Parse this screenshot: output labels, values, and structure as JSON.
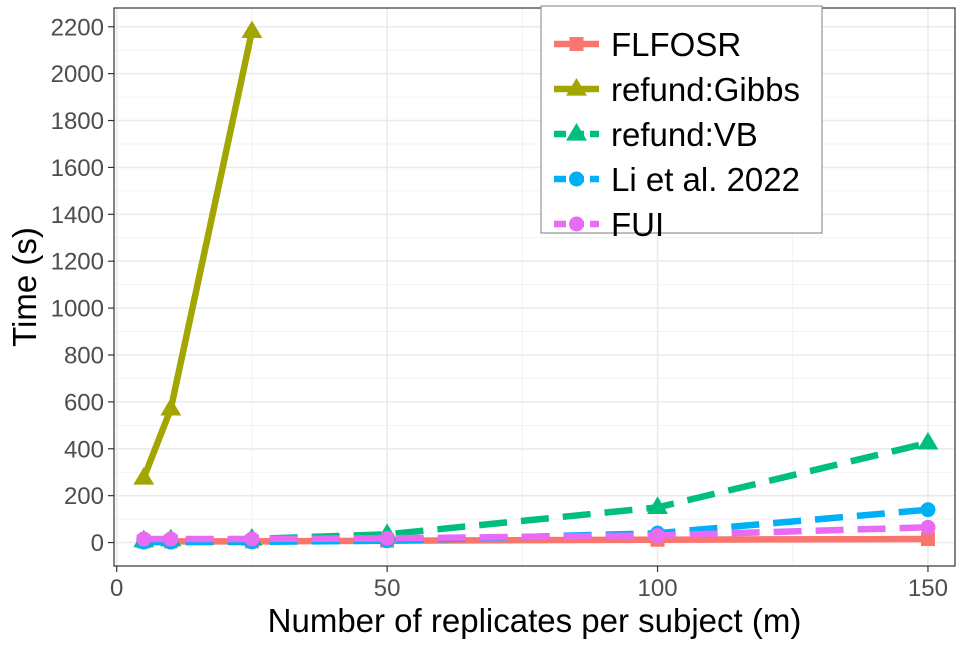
{
  "chart_data": {
    "type": "line",
    "xlabel": "Number of replicates per subject (m)",
    "ylabel": "Time (s)",
    "xlim": [
      -0.5,
      155
    ],
    "ylim": [
      -100,
      2280
    ],
    "xticks": [
      0,
      50,
      100,
      150
    ],
    "yticks": [
      0,
      200,
      400,
      600,
      800,
      1000,
      1200,
      1400,
      1600,
      1800,
      2000,
      2200
    ],
    "grid": true,
    "legend_position": "top-right",
    "series": [
      {
        "name": "FLFOSR",
        "color": "#F8766D",
        "marker": "square",
        "dash": "solid",
        "x": [
          5,
          10,
          25,
          50,
          100,
          150
        ],
        "y": [
          5,
          5,
          5,
          8,
          12,
          15
        ]
      },
      {
        "name": "refund:Gibbs",
        "color": "#A3A500",
        "marker": "triangle",
        "dash": "solid",
        "x": [
          5,
          10,
          25
        ],
        "y": [
          275,
          570,
          2180
        ]
      },
      {
        "name": "refund:VB",
        "color": "#00BF7D",
        "marker": "triangle",
        "dash": "dashed",
        "x": [
          5,
          10,
          25,
          50,
          100,
          150
        ],
        "y": [
          8,
          12,
          15,
          35,
          150,
          425
        ]
      },
      {
        "name": "Li et al. 2022",
        "color": "#00B0F6",
        "marker": "circle",
        "dash": "dashed",
        "x": [
          5,
          10,
          25,
          50,
          100,
          150
        ],
        "y": [
          2,
          2,
          3,
          8,
          40,
          140
        ]
      },
      {
        "name": "FUI",
        "color": "#E76BF3",
        "marker": "circle",
        "dash": "dashed",
        "x": [
          5,
          10,
          25,
          50,
          100,
          150
        ],
        "y": [
          15,
          15,
          15,
          18,
          30,
          65
        ]
      }
    ]
  }
}
